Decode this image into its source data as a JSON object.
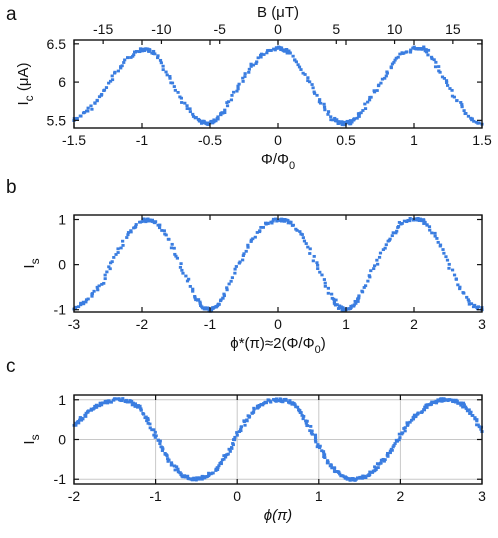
{
  "chart_data": [
    {
      "panel": "a",
      "type": "scatter",
      "title": "",
      "xlabel": "Φ/Φ",
      "xlabel_sub": "0",
      "ylabel": "I",
      "ylabel_sub": "c",
      "ylabel_unit": " (μA)",
      "xlim": [
        -1.5,
        1.5
      ],
      "ylim": [
        5.4,
        6.55
      ],
      "xticks": [
        -1.5,
        -1,
        -0.5,
        0,
        0.5,
        1,
        1.5
      ],
      "xtick_labels": [
        "-1.5",
        "-1",
        "-0.5",
        "0",
        "0.5",
        "1",
        "1.5"
      ],
      "yticks": [
        5.5,
        6,
        6.5
      ],
      "ytick_labels": [
        "5.5",
        "6",
        "6.5"
      ],
      "secondary_x": {
        "label": "B (μT)",
        "ticks": [
          -15,
          -10,
          -5,
          0,
          5,
          10,
          15
        ],
        "tick_labels": [
          "-15",
          "-10",
          "-5",
          "0",
          "5",
          "10",
          "15"
        ],
        "lim": [
          -17.5,
          17.5
        ]
      },
      "grid": false,
      "color": "#3a7de0",
      "series": [
        {
          "x": [
            -1.5,
            -1.4,
            -1.3,
            -1.2,
            -1.1,
            -1.0,
            -0.95,
            -0.9,
            -0.8,
            -0.7,
            -0.6,
            -0.55,
            -0.5,
            -0.45,
            -0.4,
            -0.3,
            -0.2,
            -0.1,
            0.0,
            0.05,
            0.1,
            0.2,
            0.3,
            0.4,
            0.45,
            0.5,
            0.55,
            0.6,
            0.7,
            0.8,
            0.9,
            1.0,
            1.05,
            1.1,
            1.2,
            1.3,
            1.4,
            1.5
          ],
          "y": [
            5.5,
            5.62,
            5.82,
            6.1,
            6.33,
            6.43,
            6.42,
            6.36,
            6.08,
            5.75,
            5.52,
            5.47,
            5.46,
            5.5,
            5.62,
            5.92,
            6.2,
            6.38,
            6.44,
            6.42,
            6.37,
            6.1,
            5.78,
            5.52,
            5.47,
            5.46,
            5.48,
            5.58,
            5.85,
            6.12,
            6.35,
            6.44,
            6.45,
            6.4,
            6.12,
            5.8,
            5.55,
            5.45
          ]
        }
      ]
    },
    {
      "panel": "b",
      "type": "scatter",
      "title": "",
      "xlabel": "ϕ*(π)≈2(Φ/Φ",
      "xlabel_sub": "0",
      "xlabel_end": ")",
      "ylabel": "I",
      "ylabel_sub": "s",
      "xlim": [
        -3,
        3
      ],
      "ylim": [
        -1.05,
        1.1
      ],
      "xticks": [
        -3,
        -2,
        -1,
        0,
        1,
        2,
        3
      ],
      "xtick_labels": [
        "-3",
        "-2",
        "-1",
        "0",
        "1",
        "2",
        "3"
      ],
      "yticks": [
        -1,
        0,
        1
      ],
      "ytick_labels": [
        "-1",
        "0",
        "1"
      ],
      "grid": false,
      "color": "#3a7de0",
      "series": [
        {
          "x": [
            -3.0,
            -2.8,
            -2.6,
            -2.4,
            -2.2,
            -2.0,
            -1.9,
            -1.8,
            -1.6,
            -1.4,
            -1.2,
            -1.1,
            -1.0,
            -0.9,
            -0.8,
            -0.6,
            -0.4,
            -0.2,
            0.0,
            0.1,
            0.2,
            0.4,
            0.6,
            0.8,
            0.9,
            1.0,
            1.1,
            1.2,
            1.4,
            1.6,
            1.8,
            2.0,
            2.1,
            2.2,
            2.4,
            2.6,
            2.8,
            3.0
          ],
          "y": [
            -0.95,
            -0.8,
            -0.45,
            0.15,
            0.7,
            0.97,
            1.0,
            0.95,
            0.55,
            -0.1,
            -0.75,
            -0.97,
            -1.0,
            -0.95,
            -0.7,
            -0.05,
            0.5,
            0.9,
            1.0,
            0.99,
            0.93,
            0.55,
            -0.1,
            -0.75,
            -0.95,
            -1.0,
            -0.93,
            -0.7,
            -0.1,
            0.5,
            0.9,
            1.02,
            1.0,
            0.9,
            0.4,
            -0.3,
            -0.85,
            -1.0
          ]
        }
      ]
    },
    {
      "panel": "c",
      "type": "scatter",
      "title": "",
      "xlabel": "ϕ(π)",
      "ylabel": "I",
      "ylabel_sub": "s",
      "xlim": [
        -2,
        3
      ],
      "ylim": [
        -1.12,
        1.12
      ],
      "xticks": [
        -2,
        -1,
        0,
        1,
        2,
        3
      ],
      "xtick_labels": [
        "-2",
        "-1",
        "0",
        "1",
        "2",
        "3"
      ],
      "yticks": [
        -1,
        0,
        1
      ],
      "ytick_labels": [
        "-1",
        "0",
        "1"
      ],
      "grid": true,
      "color": "#3a7de0",
      "series": [
        {
          "x": [
            -2.0,
            -1.9,
            -1.8,
            -1.7,
            -1.6,
            -1.5,
            -1.4,
            -1.3,
            -1.2,
            -1.1,
            -1.0,
            -0.9,
            -0.8,
            -0.7,
            -0.6,
            -0.5,
            -0.4,
            -0.3,
            -0.2,
            -0.1,
            0.0,
            0.1,
            0.2,
            0.3,
            0.4,
            0.5,
            0.6,
            0.7,
            0.8,
            0.9,
            1.0,
            1.1,
            1.2,
            1.3,
            1.4,
            1.5,
            1.6,
            1.7,
            1.8,
            1.9,
            2.0,
            2.1,
            2.2,
            2.3,
            2.4,
            2.5,
            2.6,
            2.7,
            2.8,
            2.9,
            3.0
          ],
          "y": [
            0.35,
            0.55,
            0.72,
            0.86,
            0.95,
            0.99,
            1.0,
            0.95,
            0.8,
            0.5,
            0.1,
            -0.3,
            -0.62,
            -0.85,
            -0.97,
            -1.0,
            -0.95,
            -0.85,
            -0.6,
            -0.3,
            0.1,
            0.45,
            0.72,
            0.88,
            0.97,
            1.0,
            0.98,
            0.9,
            0.62,
            0.25,
            -0.15,
            -0.5,
            -0.78,
            -0.93,
            -1.0,
            -0.99,
            -0.9,
            -0.72,
            -0.5,
            -0.22,
            0.1,
            0.4,
            0.62,
            0.8,
            0.92,
            0.99,
            1.0,
            0.96,
            0.82,
            0.55,
            0.2
          ]
        }
      ]
    }
  ],
  "panel_labels": [
    "a",
    "b",
    "c"
  ]
}
